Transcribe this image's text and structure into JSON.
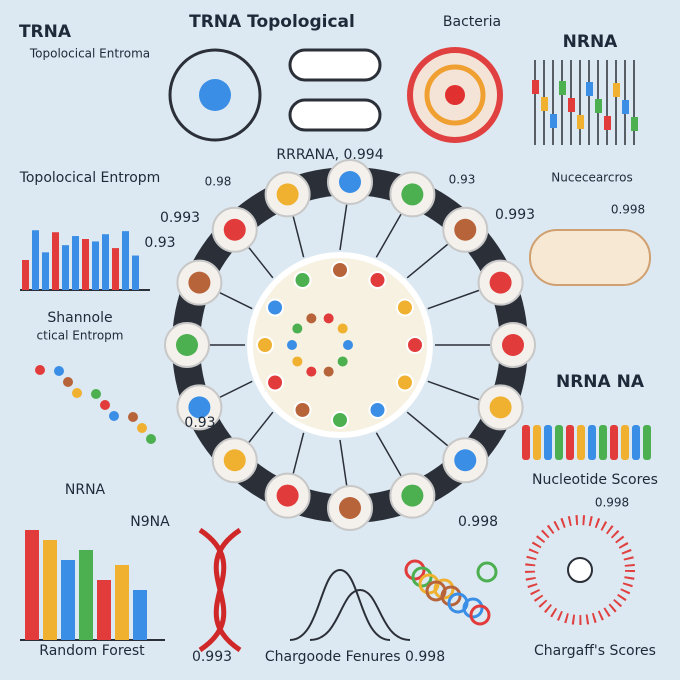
{
  "labels": [
    "TRNA",
    "Topolocical Entroma",
    "TRNA Topological",
    "Bacteria",
    "NRNA",
    "RRRANA, 0.994",
    "Topolocical Entropm",
    "0.98",
    "Nucecearcros",
    "0.93",
    "0.993",
    "0.93",
    "0.993",
    "0.998",
    "Shannole",
    "ctical Entropm",
    "0.93",
    "NRNA NA",
    "NRNA",
    "Nucleotide Scores",
    "N9NA",
    "0.998",
    "0.998",
    "Random Forest",
    "0.993",
    "Chargoode Fenures 0.998",
    "Chargaff's Scores"
  ]
}
